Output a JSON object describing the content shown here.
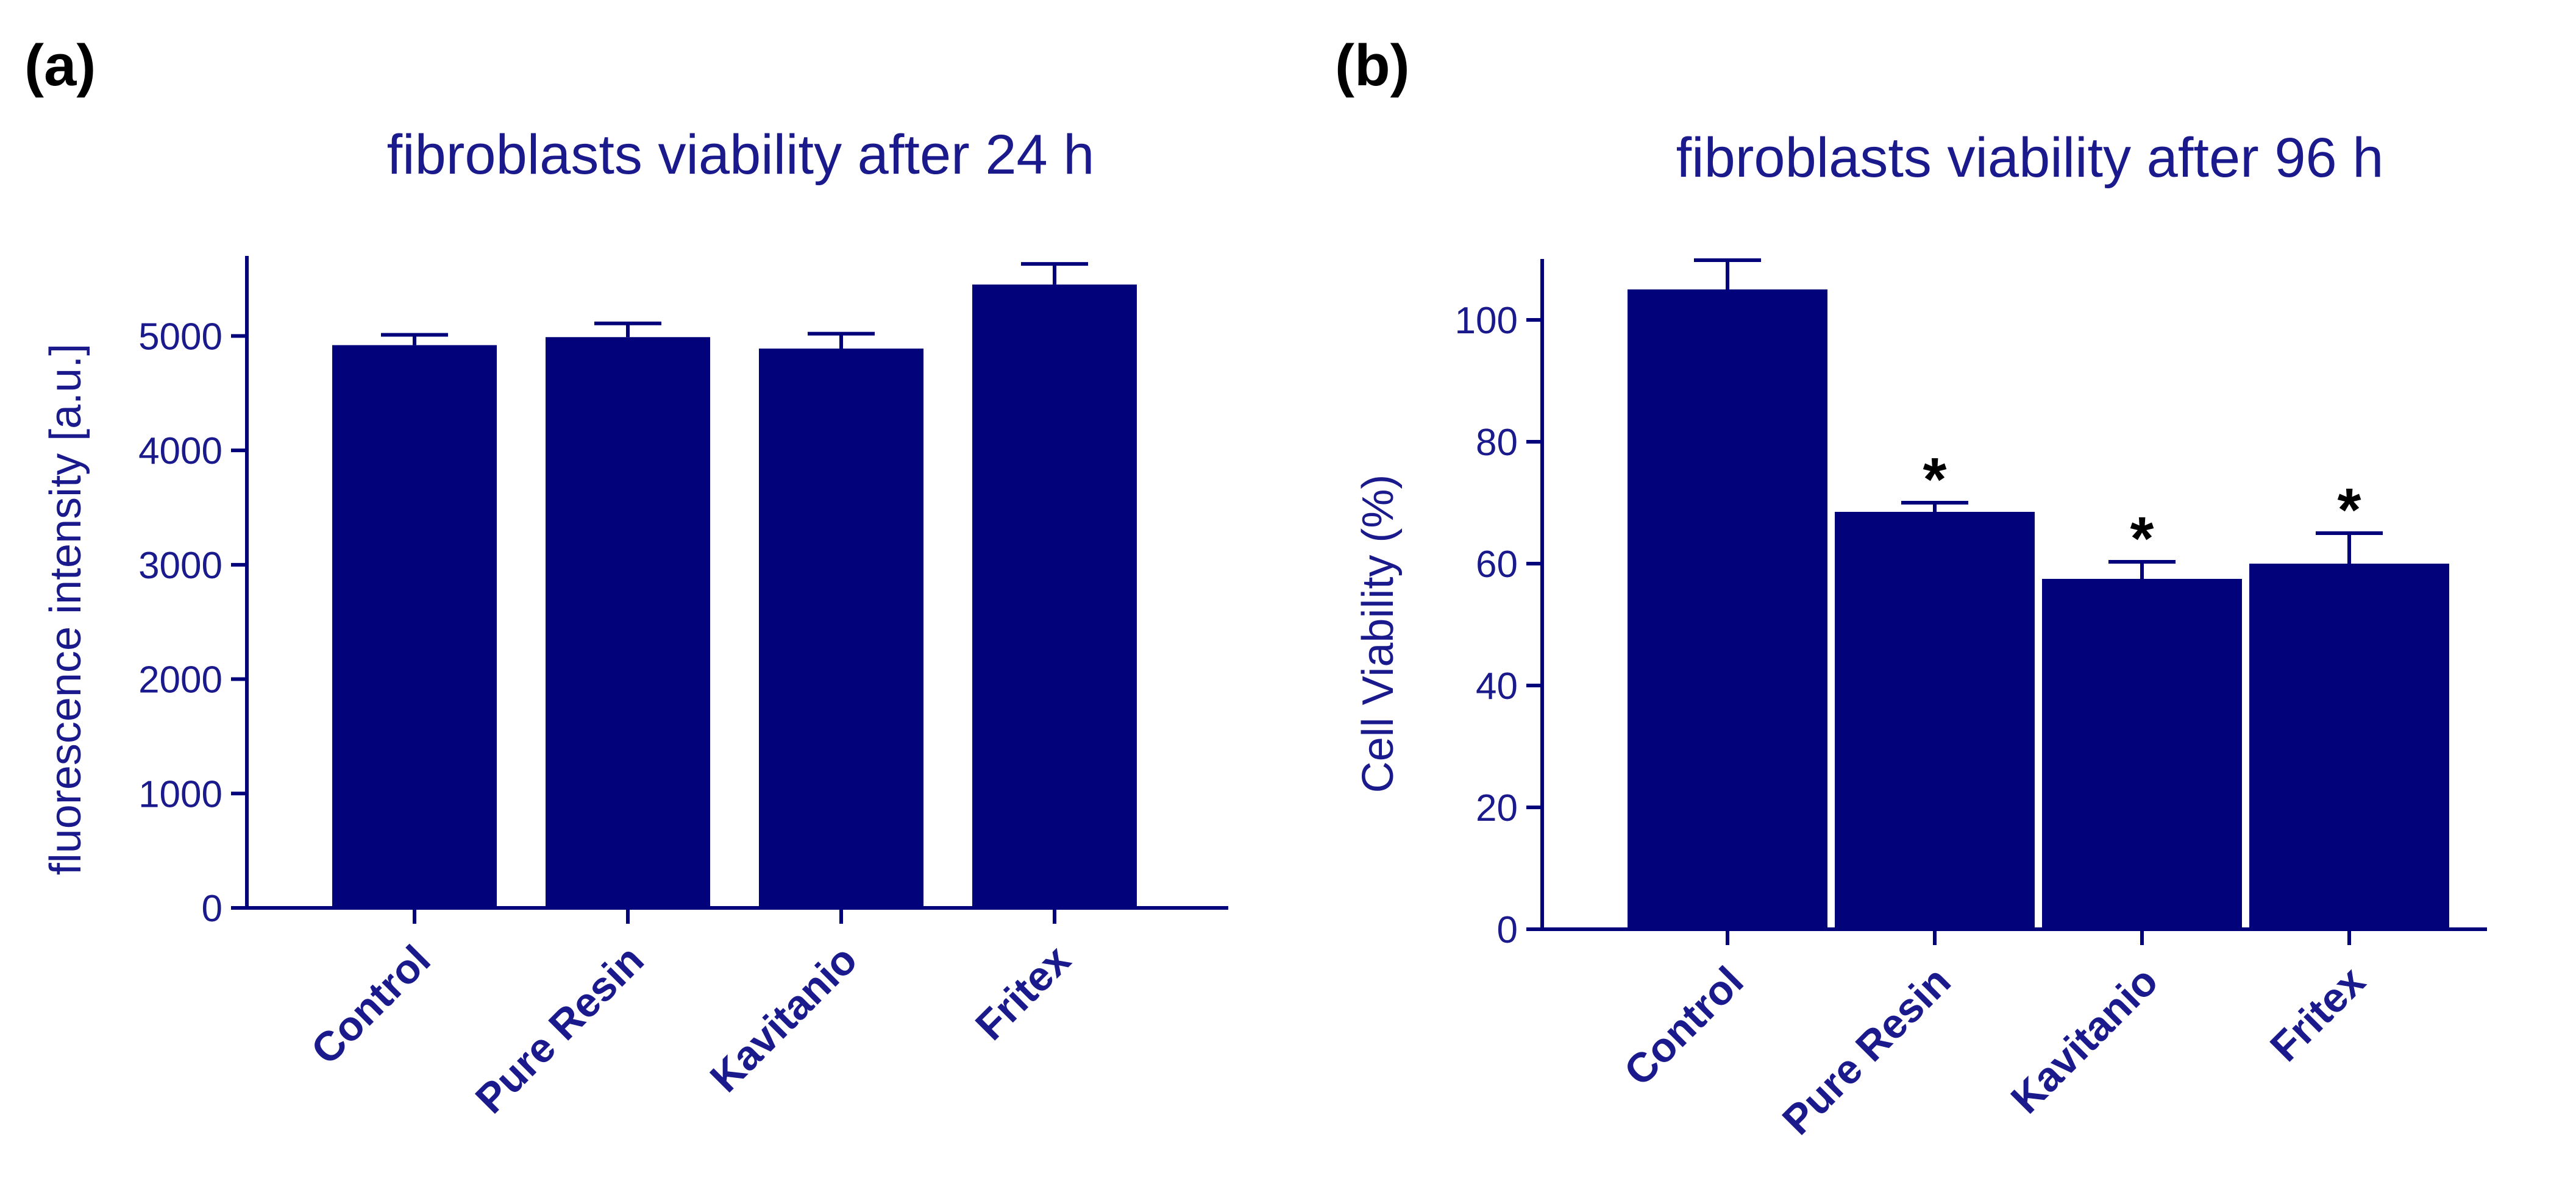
{
  "colors": {
    "bar": "#02027a",
    "axis": "#02027a",
    "text": "#1a1a8c",
    "panel_label": "#000000"
  },
  "chart_data": [
    {
      "panel": "(a)",
      "type": "bar",
      "title": "fibroblasts viability after 24 h",
      "ylabel": "fluorescence intensity [a.u.]",
      "xlabel": "",
      "categories": [
        "Control",
        "Pure Resin",
        "Kavitanio",
        "Fritex"
      ],
      "values": [
        4920,
        4990,
        4890,
        5450
      ],
      "errors": [
        90,
        120,
        130,
        180
      ],
      "significance": [
        "",
        "",
        "",
        ""
      ],
      "ylim": [
        0,
        5700
      ],
      "yticks": [
        0,
        1000,
        2000,
        3000,
        4000,
        5000
      ],
      "ytick_labels": [
        "0",
        "1000",
        "2000",
        "3000",
        "4000",
        "5000"
      ],
      "grid": false,
      "legend": "none"
    },
    {
      "panel": "(b)",
      "type": "bar",
      "title": "fibroblasts viability after 96 h",
      "ylabel": "Cell Viability (%)",
      "xlabel": "",
      "categories": [
        "Control",
        "Pure Resin",
        "Kavitanio",
        "Fritex"
      ],
      "values": [
        105,
        68.5,
        57.5,
        60
      ],
      "errors": [
        4.8,
        1.5,
        2.8,
        5
      ],
      "significance": [
        "",
        "*",
        "*",
        "*"
      ],
      "ylim": [
        0,
        110
      ],
      "yticks": [
        0,
        20,
        40,
        60,
        80,
        100
      ],
      "ytick_labels": [
        "0",
        "20",
        "40",
        "60",
        "80",
        "100"
      ],
      "grid": false,
      "legend": "none"
    }
  ]
}
